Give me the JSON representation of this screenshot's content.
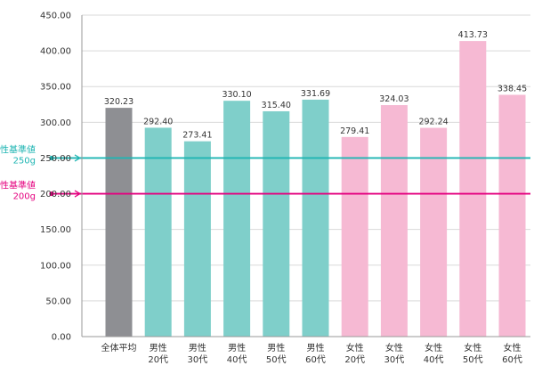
{
  "chart_data": {
    "type": "bar",
    "categories": [
      [
        "全体平均"
      ],
      [
        "男性",
        "20代"
      ],
      [
        "男性",
        "30代"
      ],
      [
        "男性",
        "40代"
      ],
      [
        "男性",
        "50代"
      ],
      [
        "男性",
        "60代"
      ],
      [
        "女性",
        "20代"
      ],
      [
        "女性",
        "30代"
      ],
      [
        "女性",
        "40代"
      ],
      [
        "女性",
        "50代"
      ],
      [
        "女性",
        "60代"
      ]
    ],
    "values": [
      320.23,
      292.4,
      273.41,
      330.1,
      315.4,
      331.69,
      279.41,
      324.03,
      292.24,
      413.73,
      338.45
    ],
    "value_labels": [
      "320.23",
      "292.40",
      "273.41",
      "330.10",
      "315.40",
      "331.69",
      "279.41",
      "324.03",
      "292.24",
      "413.73",
      "338.45"
    ],
    "groups": [
      "overall",
      "male",
      "male",
      "male",
      "male",
      "male",
      "female",
      "female",
      "female",
      "female",
      "female"
    ],
    "colors": {
      "overall": "#8e8f93",
      "male": "#7fcfca",
      "female": "#f6b9d3"
    },
    "ylim": [
      0,
      450
    ],
    "yticks": [
      "0.00",
      "50.00",
      "100.00",
      "150.00",
      "200.00",
      "250.00",
      "300.00",
      "350.00",
      "400.00",
      "450.00"
    ],
    "ytick_values": [
      0,
      50,
      100,
      150,
      200,
      250,
      300,
      350,
      400,
      450
    ],
    "grid": true,
    "reference_lines": [
      {
        "label": [
          "男性基準値",
          "250g"
        ],
        "value": 250,
        "color": "#1fb5b3"
      },
      {
        "label": [
          "女性基準値",
          "200g"
        ],
        "value": 200,
        "color": "#e4007f"
      }
    ],
    "title": "",
    "xlabel": "",
    "ylabel": ""
  }
}
